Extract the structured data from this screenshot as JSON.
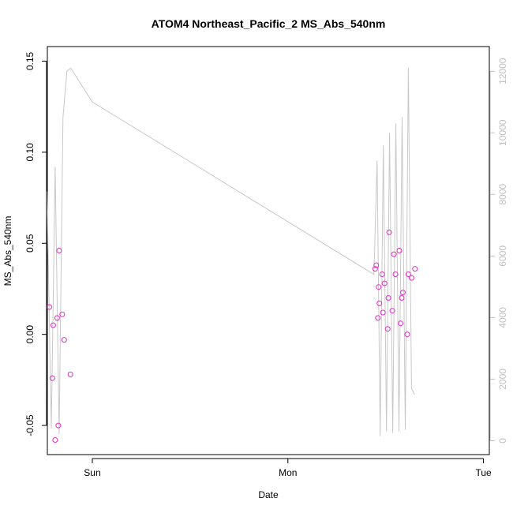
{
  "chart_data": {
    "type": "scatter",
    "title": "ATOM4 Northeast_Pacific_2 MS_Abs_540nm",
    "xlabel": "Date",
    "ylabel": "MS_Abs_540nm",
    "x_ticks": [
      "Sun",
      "Mon",
      "Tue"
    ],
    "xlim": [
      -0.115,
      1.015
    ],
    "ylim": [
      -0.066,
      0.158
    ],
    "y_ticks": [
      "-0.05",
      "0.00",
      "0.05",
      "0.10",
      "0.15"
    ],
    "y_tick_values": [
      -0.05,
      0.0,
      0.05,
      0.1,
      0.15
    ],
    "y2_ticks": [
      "0",
      "2000",
      "4000",
      "6000",
      "8000",
      "10000",
      "12000"
    ],
    "y2_tick_values": [
      0,
      2000,
      4000,
      6000,
      8000,
      10000,
      12000
    ],
    "y2lim": [
      -450,
      12800
    ],
    "grid": false,
    "legend": "none",
    "colors": {
      "points": "#e030c0",
      "depth_line": "#c8c8c8",
      "right_axis": "#c0c0c0"
    },
    "series": [
      {
        "marker": "open-circle",
        "x": [
          -0.11,
          -0.102,
          -0.1,
          -0.095,
          -0.09,
          -0.087,
          -0.085,
          -0.077,
          -0.072,
          -0.056,
          0.723,
          0.726,
          0.73,
          0.732,
          0.734,
          0.741,
          0.743,
          0.747,
          0.755,
          0.757,
          0.759,
          0.767,
          0.771,
          0.775,
          0.785,
          0.788,
          0.791,
          0.794,
          0.805,
          0.808,
          0.816,
          0.825
        ],
        "y": [
          0.015,
          -0.024,
          0.005,
          -0.058,
          0.009,
          -0.05,
          0.046,
          0.011,
          -0.003,
          -0.022,
          0.036,
          0.038,
          0.009,
          0.026,
          0.017,
          0.033,
          0.012,
          0.028,
          0.003,
          0.02,
          0.056,
          0.013,
          0.044,
          0.033,
          0.046,
          0.006,
          0.02,
          0.023,
          0.0,
          0.033,
          0.031,
          0.036
        ]
      },
      {
        "name": "depth",
        "axis": "right",
        "line": true,
        "x": [
          -0.116,
          -0.105,
          -0.095,
          -0.085,
          -0.075,
          -0.065,
          -0.055,
          0.0,
          0.72,
          0.728,
          0.736,
          0.744,
          0.752,
          0.76,
          0.768,
          0.776,
          0.784,
          0.792,
          0.8,
          0.808,
          0.816,
          0.824
        ],
        "y": [
          8100,
          400,
          8900,
          200,
          10500,
          12000,
          12100,
          11000,
          5400,
          9100,
          150,
          9600,
          300,
          10000,
          250,
          10300,
          300,
          10500,
          350,
          12100,
          1700,
          1500
        ]
      }
    ]
  }
}
